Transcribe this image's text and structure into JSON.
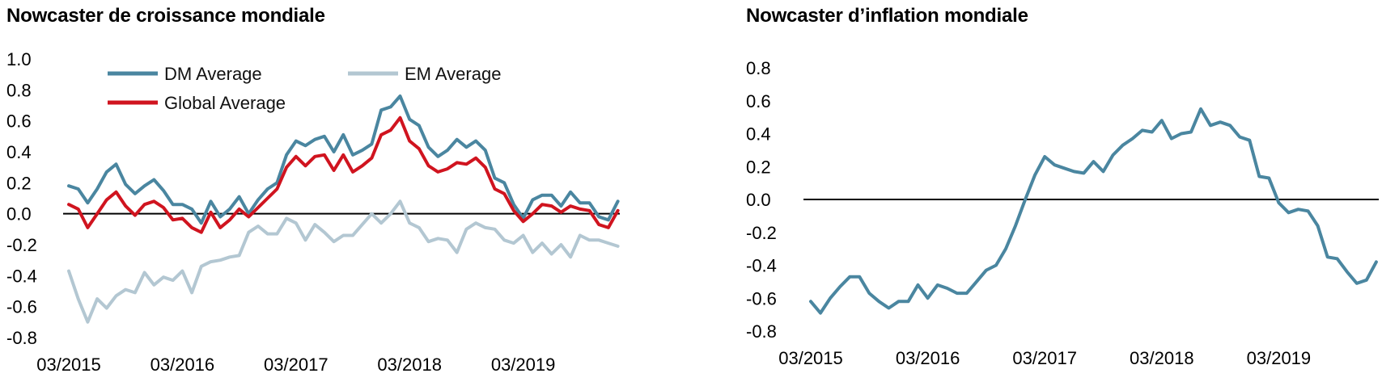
{
  "chart_data": [
    {
      "type": "line",
      "title": "Nowcaster de croissance mondiale",
      "xlabel": "",
      "ylabel": "",
      "ylim": [
        -0.8,
        1.0
      ],
      "yticks": [
        "1.0",
        "0.8",
        "0.6",
        "0.4",
        "0.2",
        "0.0",
        "-0.2",
        "-0.4",
        "-0.6",
        "-0.8"
      ],
      "xticks": [
        "03/2015",
        "03/2016",
        "03/2017",
        "03/2018",
        "03/2019"
      ],
      "x_start": "2015-03",
      "legend": "top-left",
      "series": [
        {
          "name": "DM Average",
          "color": "#4a86a0",
          "values": [
            0.18,
            0.16,
            0.07,
            0.16,
            0.27,
            0.32,
            0.19,
            0.13,
            0.18,
            0.22,
            0.15,
            0.06,
            0.06,
            0.03,
            -0.06,
            0.08,
            -0.02,
            0.03,
            0.11,
            0.0,
            0.09,
            0.16,
            0.2,
            0.38,
            0.47,
            0.44,
            0.48,
            0.5,
            0.4,
            0.51,
            0.38,
            0.41,
            0.45,
            0.67,
            0.69,
            0.76,
            0.61,
            0.57,
            0.43,
            0.37,
            0.41,
            0.48,
            0.43,
            0.47,
            0.41,
            0.23,
            0.2,
            0.06,
            -0.03,
            0.09,
            0.12,
            0.12,
            0.05,
            0.14,
            0.07,
            0.07,
            -0.02,
            -0.04,
            0.08
          ]
        },
        {
          "name": "EM Average",
          "color": "#b3c7d2",
          "values": [
            -0.37,
            -0.55,
            -0.7,
            -0.55,
            -0.61,
            -0.53,
            -0.49,
            -0.51,
            -0.38,
            -0.46,
            -0.41,
            -0.43,
            -0.37,
            -0.51,
            -0.34,
            -0.31,
            -0.3,
            -0.28,
            -0.27,
            -0.12,
            -0.08,
            -0.13,
            -0.13,
            -0.03,
            -0.06,
            -0.17,
            -0.07,
            -0.12,
            -0.18,
            -0.14,
            -0.14,
            -0.07,
            0.0,
            -0.06,
            0.0,
            0.08,
            -0.06,
            -0.09,
            -0.18,
            -0.16,
            -0.17,
            -0.25,
            -0.1,
            -0.06,
            -0.09,
            -0.1,
            -0.17,
            -0.19,
            -0.14,
            -0.25,
            -0.19,
            -0.26,
            -0.2,
            -0.28,
            -0.14,
            -0.17,
            -0.17,
            -0.19,
            -0.21
          ]
        },
        {
          "name": "Global Average",
          "color": "#d0141f",
          "values": [
            0.06,
            0.03,
            -0.09,
            0.0,
            0.09,
            0.14,
            0.05,
            -0.01,
            0.06,
            0.08,
            0.04,
            -0.04,
            -0.03,
            -0.09,
            -0.12,
            0.01,
            -0.09,
            -0.04,
            0.03,
            -0.02,
            0.04,
            0.1,
            0.16,
            0.3,
            0.37,
            0.31,
            0.37,
            0.38,
            0.28,
            0.38,
            0.27,
            0.31,
            0.36,
            0.51,
            0.54,
            0.62,
            0.47,
            0.42,
            0.31,
            0.27,
            0.29,
            0.33,
            0.32,
            0.36,
            0.3,
            0.16,
            0.13,
            0.02,
            -0.05,
            0.0,
            0.06,
            0.05,
            0.01,
            0.05,
            0.03,
            0.02,
            -0.07,
            -0.09,
            0.02
          ]
        }
      ]
    },
    {
      "type": "line",
      "title": "Nowcaster d’inflation mondiale",
      "xlabel": "",
      "ylabel": "",
      "ylim": [
        -0.8,
        0.8
      ],
      "yticks": [
        "0.8",
        "0.6",
        "0.4",
        "0.2",
        "0.0",
        "-0.2",
        "-0.4",
        "-0.6",
        "-0.8"
      ],
      "xticks": [
        "03/2015",
        "03/2016",
        "03/2017",
        "03/2018",
        "03/2019"
      ],
      "x_start": "2015-03",
      "legend": "none",
      "series": [
        {
          "color": "#4a86a0",
          "values": [
            -0.62,
            -0.69,
            -0.6,
            -0.53,
            -0.47,
            -0.47,
            -0.57,
            -0.62,
            -0.66,
            -0.62,
            -0.62,
            -0.52,
            -0.6,
            -0.52,
            -0.54,
            -0.57,
            -0.57,
            -0.5,
            -0.43,
            -0.4,
            -0.3,
            -0.16,
            0.0,
            0.15,
            0.26,
            0.21,
            0.19,
            0.17,
            0.16,
            0.23,
            0.17,
            0.27,
            0.33,
            0.37,
            0.42,
            0.41,
            0.48,
            0.37,
            0.4,
            0.41,
            0.55,
            0.45,
            0.47,
            0.45,
            0.38,
            0.36,
            0.14,
            0.13,
            -0.02,
            -0.08,
            -0.06,
            -0.07,
            -0.16,
            -0.35,
            -0.36,
            -0.44,
            -0.51,
            -0.49,
            -0.38
          ]
        }
      ]
    }
  ]
}
